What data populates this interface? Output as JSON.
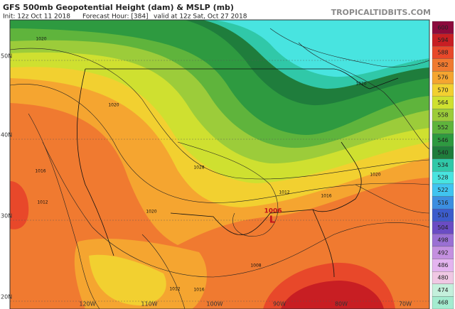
{
  "header": {
    "title": "GFS 500mb Geopotential Height (dam) & MSLP (mb)",
    "init": "Init: 12z Oct 11 2018",
    "forecast_hour": "Forecast Hour: [384]",
    "valid": "valid at 12z Sat, Oct 27 2018",
    "site": "TROPICALTIDBITS.COM"
  },
  "colorbar": {
    "levels": [
      600,
      594,
      588,
      582,
      576,
      570,
      564,
      558,
      552,
      546,
      540,
      534,
      528,
      522,
      516,
      510,
      504,
      498,
      492,
      486,
      480,
      474,
      468
    ],
    "colors": [
      "#8c0a3c",
      "#c81e23",
      "#e8482a",
      "#f07a30",
      "#f5a530",
      "#f2d030",
      "#cfe030",
      "#9ccc3a",
      "#5fb43c",
      "#2e9a40",
      "#1f7d3c",
      "#30c8a8",
      "#48e4e0",
      "#40c4f0",
      "#3c8ee0",
      "#3c5ccc",
      "#6a4cc4",
      "#9a70d4",
      "#c490e0",
      "#e4b4f0",
      "#f0c8e4",
      "#c4f0dc",
      "#a4ecd0"
    ]
  },
  "latitude_labels": [
    "50N",
    "40N",
    "30N",
    "20N"
  ],
  "longitude_labels": [
    "120W",
    "110W",
    "100W",
    "90W",
    "80W",
    "70W"
  ],
  "map_labels": [
    "1020",
    "1020",
    "1016",
    "1012",
    "1020",
    "1028",
    "1020",
    "1020",
    "1016",
    "1012",
    "1006",
    "L",
    "1008",
    "1012",
    "1016"
  ]
}
